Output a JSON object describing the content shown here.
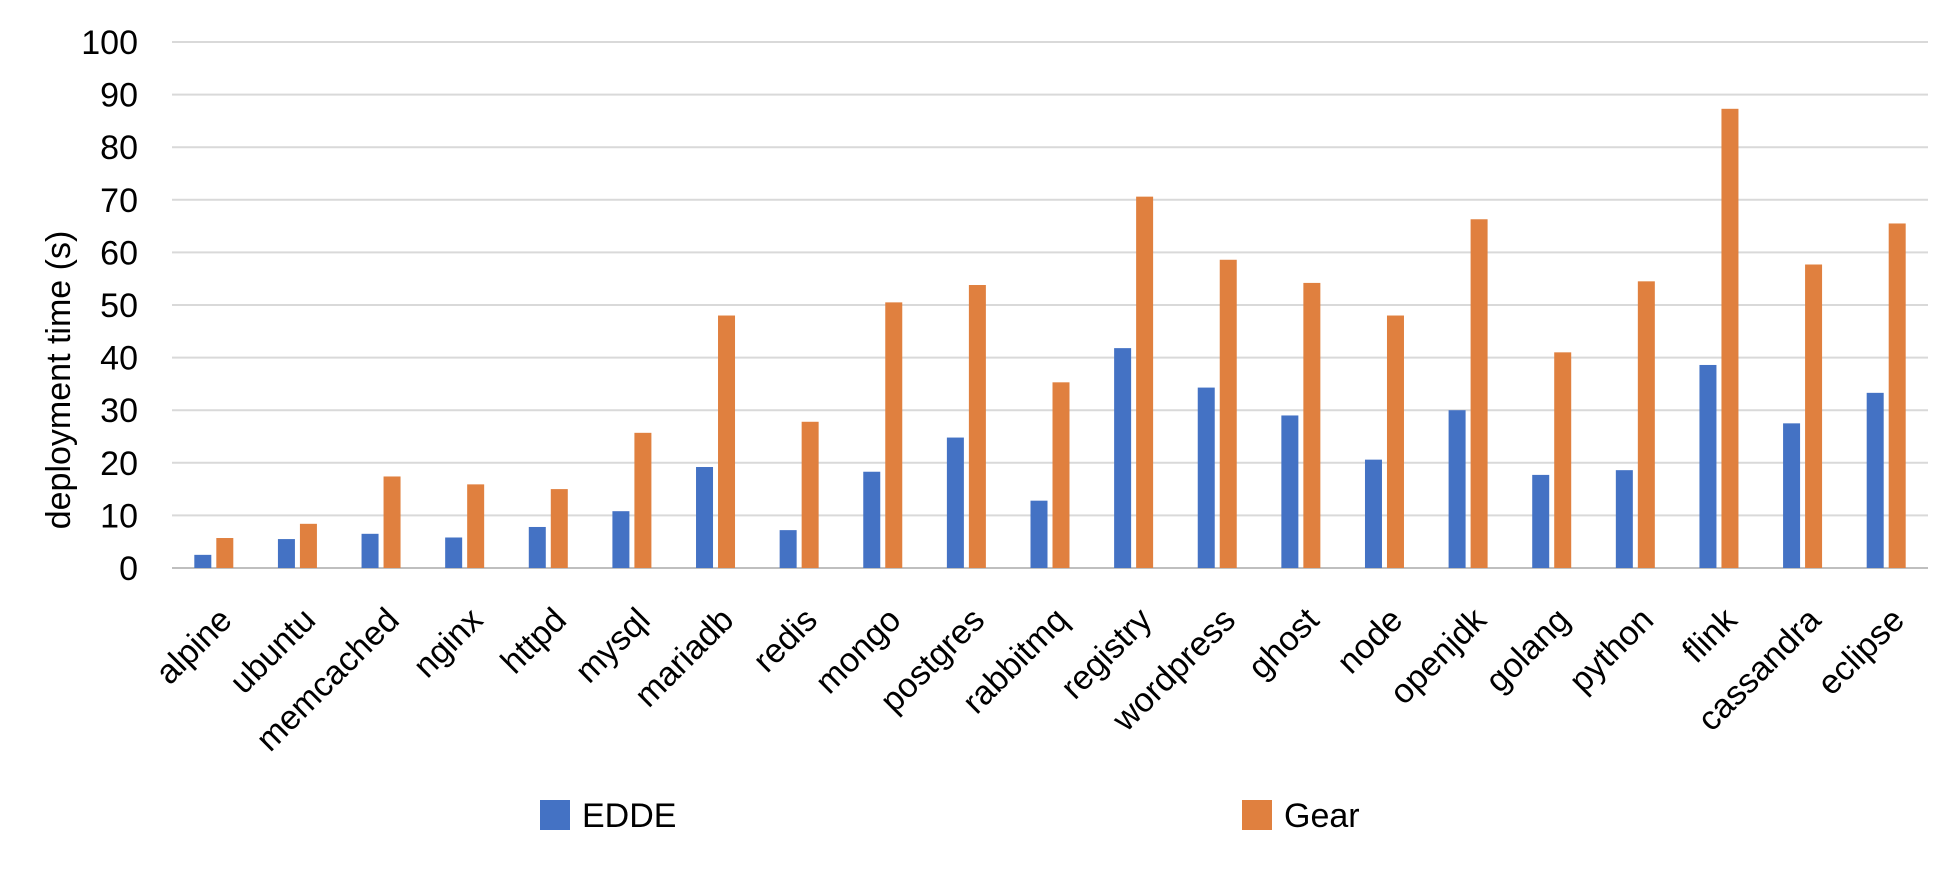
{
  "chart_data": {
    "type": "bar",
    "title": "",
    "xlabel": "",
    "ylabel": "deployment time (s)",
    "ylim": [
      0,
      100
    ],
    "yticks": [
      0,
      10,
      20,
      30,
      40,
      50,
      60,
      70,
      80,
      90,
      100
    ],
    "grid": true,
    "legend_position": "bottom",
    "categories": [
      "alpine",
      "ubuntu",
      "memcached",
      "nginx",
      "httpd",
      "mysql",
      "mariadb",
      "redis",
      "mongo",
      "postgres",
      "rabbitmq",
      "registry",
      "wordpress",
      "ghost",
      "node",
      "openjdk",
      "golang",
      "python",
      "flink",
      "cassandra",
      "eclipse"
    ],
    "series": [
      {
        "name": "EDDE",
        "color": "#4472c4",
        "values": [
          2.5,
          5.5,
          6.5,
          5.8,
          7.8,
          10.8,
          19.2,
          7.2,
          18.3,
          24.8,
          12.8,
          41.8,
          34.3,
          29,
          20.6,
          30,
          17.7,
          18.6,
          38.6,
          27.5,
          33.3
        ]
      },
      {
        "name": "Gear",
        "color": "#e0803f",
        "values": [
          5.7,
          8.4,
          17.4,
          15.9,
          15,
          25.7,
          48,
          27.8,
          50.5,
          53.8,
          35.3,
          70.6,
          58.6,
          54.2,
          48,
          66.3,
          41,
          54.5,
          87.3,
          57.7,
          65.5
        ]
      }
    ]
  }
}
